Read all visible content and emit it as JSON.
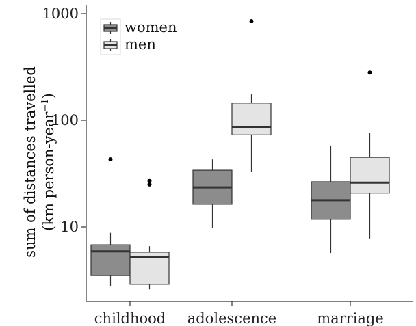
{
  "chart_data": {
    "type": "boxplot",
    "ylabel_line1": "sum of distances travelled",
    "ylabel_line2": "(km person-year",
    "ylabel_sup": "−1",
    "ylabel_close": ")",
    "yscale": "log",
    "ylim": [
      1.8,
      1000
    ],
    "yticks": [
      {
        "value": 1000,
        "label": "1000"
      },
      {
        "value": 100,
        "label": "100"
      },
      {
        "value": 10,
        "label": "10"
      }
    ],
    "categories": [
      "childhood",
      "adolescence",
      "marriage"
    ],
    "legend_position": "top-left",
    "grid": false,
    "series": [
      {
        "name": "women",
        "color": "#8c8c8c",
        "boxes": [
          {
            "category": "childhood",
            "whisker_low": 2.8,
            "q1": 3.5,
            "median": 5.9,
            "q3": 6.8,
            "whisker_high": 8.8,
            "outliers": [
              43
            ]
          },
          {
            "category": "adolescence",
            "whisker_low": 9.8,
            "q1": 16.3,
            "median": 23.5,
            "q3": 34,
            "whisker_high": 43,
            "outliers": []
          },
          {
            "category": "marriage",
            "whisker_low": 5.7,
            "q1": 11.8,
            "median": 17.8,
            "q3": 26.5,
            "whisker_high": 58,
            "outliers": []
          }
        ]
      },
      {
        "name": "men",
        "color": "#e4e4e4",
        "boxes": [
          {
            "category": "childhood",
            "whisker_low": 2.6,
            "q1": 2.9,
            "median": 5.2,
            "q3": 5.8,
            "whisker_high": 6.6,
            "outliers": [
              25,
              27
            ]
          },
          {
            "category": "adolescence",
            "whisker_low": 33,
            "q1": 73,
            "median": 86,
            "q3": 145,
            "whisker_high": 175,
            "outliers": [
              850
            ]
          },
          {
            "category": "marriage",
            "whisker_low": 7.8,
            "q1": 20.7,
            "median": 26,
            "q3": 45,
            "whisker_high": 76,
            "outliers": [
              280
            ]
          }
        ]
      }
    ]
  }
}
